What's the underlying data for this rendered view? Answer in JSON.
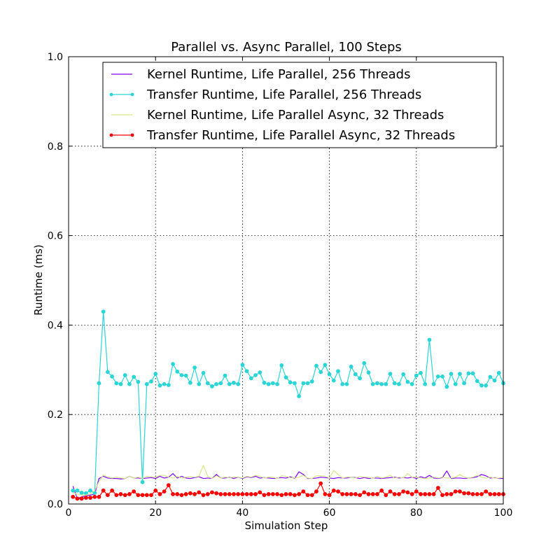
{
  "chart_data": {
    "type": "line",
    "title": "Parallel vs. Async Parallel, 100 Steps",
    "xlabel": "Simulation Step",
    "ylabel": "Runtime (ms)",
    "xlim": [
      0,
      100
    ],
    "ylim": [
      0.0,
      1.0
    ],
    "xticks": [
      0,
      20,
      40,
      60,
      80,
      100
    ],
    "xtick_labels": [
      "0",
      "20",
      "40",
      "60",
      "80",
      "100"
    ],
    "yticks": [
      0.0,
      0.2,
      0.4,
      0.6,
      0.8,
      1.0
    ],
    "ytick_labels": [
      "0.0",
      "0.2",
      "0.4",
      "0.6",
      "0.8",
      "1.0"
    ],
    "grid": true,
    "legend_position": "top-right",
    "x": [
      1,
      2,
      3,
      4,
      5,
      6,
      7,
      8,
      9,
      10,
      11,
      12,
      13,
      14,
      15,
      16,
      17,
      18,
      19,
      20,
      21,
      22,
      23,
      24,
      25,
      26,
      27,
      28,
      29,
      30,
      31,
      32,
      33,
      34,
      35,
      36,
      37,
      38,
      39,
      40,
      41,
      42,
      43,
      44,
      45,
      46,
      47,
      48,
      49,
      50,
      51,
      52,
      53,
      54,
      55,
      56,
      57,
      58,
      59,
      60,
      61,
      62,
      63,
      64,
      65,
      66,
      67,
      68,
      69,
      70,
      71,
      72,
      73,
      74,
      75,
      76,
      77,
      78,
      79,
      80,
      81,
      82,
      83,
      84,
      85,
      86,
      87,
      88,
      89,
      90,
      91,
      92,
      93,
      94,
      95,
      96,
      97,
      98,
      99,
      100
    ],
    "series": [
      {
        "name": "Kernel Runtime, Life Parallel, 256 Threads",
        "color": "#7f00ff",
        "marker": false,
        "values": [
          0.04,
          0.012,
          0.016,
          0.018,
          0.02,
          0.022,
          0.057,
          0.062,
          0.058,
          0.057,
          0.057,
          0.056,
          0.057,
          0.062,
          0.058,
          0.058,
          0.057,
          0.058,
          0.059,
          0.057,
          0.062,
          0.058,
          0.06,
          0.068,
          0.058,
          0.062,
          0.058,
          0.057,
          0.059,
          0.061,
          0.057,
          0.058,
          0.057,
          0.066,
          0.058,
          0.058,
          0.06,
          0.057,
          0.06,
          0.057,
          0.061,
          0.059,
          0.062,
          0.058,
          0.059,
          0.058,
          0.057,
          0.058,
          0.059,
          0.058,
          0.061,
          0.057,
          0.072,
          0.066,
          0.057,
          0.057,
          0.058,
          0.06,
          0.059,
          0.058,
          0.057,
          0.059,
          0.058,
          0.058,
          0.06,
          0.059,
          0.057,
          0.059,
          0.057,
          0.058,
          0.058,
          0.057,
          0.058,
          0.059,
          0.06,
          0.058,
          0.059,
          0.058,
          0.06,
          0.057,
          0.061,
          0.058,
          0.064,
          0.058,
          0.057,
          0.059,
          0.074,
          0.057,
          0.058,
          0.058,
          0.057,
          0.058,
          0.059,
          0.061,
          0.066,
          0.063,
          0.058,
          0.059,
          0.057,
          0.057
        ]
      },
      {
        "name": "Transfer Runtime, Life Parallel, 256 Threads",
        "color": "#2ad5d5",
        "marker": true,
        "values": [
          0.03,
          0.03,
          0.025,
          0.024,
          0.03,
          0.025,
          0.27,
          0.43,
          0.295,
          0.285,
          0.27,
          0.268,
          0.288,
          0.268,
          0.284,
          0.273,
          0.049,
          0.268,
          0.274,
          0.291,
          0.265,
          0.268,
          0.266,
          0.313,
          0.296,
          0.288,
          0.287,
          0.271,
          0.305,
          0.268,
          0.293,
          0.27,
          0.263,
          0.268,
          0.27,
          0.287,
          0.268,
          0.271,
          0.268,
          0.311,
          0.297,
          0.281,
          0.288,
          0.294,
          0.271,
          0.268,
          0.27,
          0.268,
          0.31,
          0.283,
          0.272,
          0.27,
          0.241,
          0.27,
          0.27,
          0.274,
          0.309,
          0.295,
          0.311,
          0.29,
          0.276,
          0.297,
          0.268,
          0.268,
          0.307,
          0.29,
          0.281,
          0.315,
          0.294,
          0.268,
          0.27,
          0.268,
          0.268,
          0.291,
          0.27,
          0.268,
          0.29,
          0.273,
          0.268,
          0.287,
          0.293,
          0.268,
          0.367,
          0.268,
          0.285,
          0.285,
          0.262,
          0.291,
          0.268,
          0.291,
          0.27,
          0.292,
          0.292,
          0.275,
          0.265,
          0.265,
          0.284,
          0.276,
          0.293,
          0.27
        ]
      },
      {
        "name": "Kernel Runtime, Life Parallel Async, 32 Threads",
        "color": "#d4e68a",
        "marker": false,
        "values": [
          0.025,
          0.022,
          0.02,
          0.02,
          0.022,
          0.03,
          0.05,
          0.065,
          0.06,
          0.058,
          0.06,
          0.058,
          0.057,
          0.062,
          0.058,
          0.06,
          0.057,
          0.062,
          0.061,
          0.06,
          0.064,
          0.064,
          0.06,
          0.058,
          0.062,
          0.058,
          0.06,
          0.061,
          0.06,
          0.062,
          0.086,
          0.062,
          0.057,
          0.063,
          0.058,
          0.06,
          0.059,
          0.06,
          0.06,
          0.058,
          0.062,
          0.06,
          0.064,
          0.062,
          0.058,
          0.06,
          0.06,
          0.057,
          0.063,
          0.062,
          0.059,
          0.058,
          0.06,
          0.064,
          0.058,
          0.057,
          0.063,
          0.063,
          0.062,
          0.058,
          0.075,
          0.066,
          0.058,
          0.06,
          0.06,
          0.058,
          0.062,
          0.06,
          0.06,
          0.057,
          0.062,
          0.058,
          0.06,
          0.064,
          0.058,
          0.06,
          0.058,
          0.068,
          0.06,
          0.06,
          0.058,
          0.057,
          0.058,
          0.06,
          0.058,
          0.06,
          0.058,
          0.058,
          0.06,
          0.066,
          0.06,
          0.058,
          0.06,
          0.064,
          0.06,
          0.058,
          0.06,
          0.058,
          0.058,
          0.06
        ]
      },
      {
        "name": "Transfer Runtime, Life Parallel Async, 32 Threads",
        "color": "#ff0000",
        "marker": true,
        "values": [
          0.016,
          0.012,
          0.012,
          0.014,
          0.014,
          0.016,
          0.016,
          0.03,
          0.02,
          0.03,
          0.02,
          0.022,
          0.02,
          0.022,
          0.028,
          0.02,
          0.02,
          0.02,
          0.02,
          0.03,
          0.022,
          0.028,
          0.042,
          0.022,
          0.022,
          0.02,
          0.022,
          0.024,
          0.022,
          0.026,
          0.02,
          0.022,
          0.026,
          0.024,
          0.022,
          0.022,
          0.022,
          0.022,
          0.022,
          0.022,
          0.022,
          0.022,
          0.022,
          0.026,
          0.02,
          0.022,
          0.022,
          0.022,
          0.02,
          0.022,
          0.022,
          0.02,
          0.022,
          0.028,
          0.02,
          0.02,
          0.028,
          0.046,
          0.022,
          0.02,
          0.03,
          0.028,
          0.022,
          0.022,
          0.022,
          0.022,
          0.02,
          0.026,
          0.022,
          0.022,
          0.022,
          0.03,
          0.02,
          0.028,
          0.022,
          0.022,
          0.028,
          0.026,
          0.022,
          0.028,
          0.022,
          0.022,
          0.022,
          0.022,
          0.036,
          0.02,
          0.022,
          0.022,
          0.028,
          0.028,
          0.024,
          0.024,
          0.022,
          0.022,
          0.022,
          0.028,
          0.022,
          0.022,
          0.022,
          0.022
        ]
      }
    ]
  }
}
